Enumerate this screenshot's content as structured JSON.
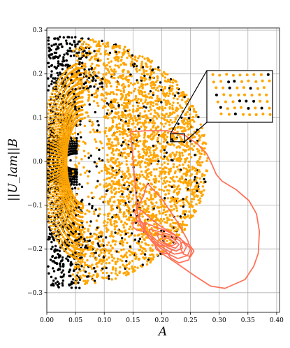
{
  "chart_data": {
    "type": "scatter",
    "xlabel": "A",
    "ylabel": "||U_lam||B",
    "xlim": [
      0.0,
      0.405
    ],
    "ylim": [
      -0.345,
      0.305
    ],
    "xticks": [
      "0.00",
      "0.05",
      "0.10",
      "0.15",
      "0.20",
      "0.25",
      "0.30",
      "0.35",
      "0.40"
    ],
    "yticks": [
      "0.3",
      "0.2",
      "0.1",
      "0.0",
      "−0.1",
      "−0.2",
      "−0.3"
    ],
    "grid": true,
    "colors": {
      "black_points": "#000000",
      "orange_points": "#ffa500",
      "contour": "#ff6f55"
    },
    "ellipse_boundary": {
      "center": [
        0.05,
        0.0
      ],
      "semi_x": 0.23,
      "semi_y": 0.282
    },
    "black_arcs": {
      "center": [
        0.052,
        0.0
      ],
      "radii": [
        0.016,
        0.021,
        0.026,
        0.031,
        0.036,
        0.041,
        0.046
      ],
      "aspect": 1.0
    },
    "orange_rings": {
      "center": [
        0.052,
        0.0
      ],
      "radii": [
        0.051,
        0.057,
        0.063,
        0.069,
        0.075,
        0.081,
        0.088,
        0.095,
        0.102,
        0.11,
        0.118,
        0.126,
        0.134
      ],
      "aspect": 1.0
    },
    "inset": {
      "zoom_region": {
        "x": [
          0.215,
          0.24
        ],
        "y": [
          0.045,
          0.063
        ]
      },
      "position": "upper-right"
    },
    "contours": [
      [
        [
          0.146,
          0.068
        ],
        [
          0.175,
          0.07
        ],
        [
          0.21,
          0.07
        ],
        [
          0.24,
          0.06
        ],
        [
          0.262,
          0.04
        ],
        [
          0.278,
          0.018
        ],
        [
          0.285,
          0.0
        ],
        [
          0.295,
          -0.03
        ],
        [
          0.305,
          -0.045
        ],
        [
          0.33,
          -0.065
        ],
        [
          0.352,
          -0.09
        ],
        [
          0.365,
          -0.12
        ],
        [
          0.37,
          -0.16
        ],
        [
          0.368,
          -0.21
        ],
        [
          0.36,
          -0.24
        ],
        [
          0.345,
          -0.27
        ],
        [
          0.31,
          -0.29
        ],
        [
          0.285,
          -0.285
        ],
        [
          0.258,
          -0.262
        ],
        [
          0.225,
          -0.232
        ],
        [
          0.2,
          -0.21
        ],
        [
          0.178,
          -0.175
        ],
        [
          0.165,
          -0.14
        ],
        [
          0.158,
          -0.12
        ]
      ],
      [
        [
          0.175,
          -0.05
        ],
        [
          0.2,
          -0.085
        ],
        [
          0.228,
          -0.14
        ],
        [
          0.245,
          -0.18
        ],
        [
          0.252,
          -0.205
        ],
        [
          0.247,
          -0.225
        ],
        [
          0.23,
          -0.232
        ],
        [
          0.215,
          -0.22
        ],
        [
          0.205,
          -0.2
        ],
        [
          0.19,
          -0.185
        ],
        [
          0.175,
          -0.165
        ],
        [
          0.158,
          -0.14
        ],
        [
          0.153,
          -0.115
        ],
        [
          0.16,
          -0.1
        ],
        [
          0.168,
          -0.08
        ]
      ],
      [
        [
          0.163,
          -0.11
        ],
        [
          0.18,
          -0.13
        ],
        [
          0.2,
          -0.15
        ],
        [
          0.22,
          -0.165
        ],
        [
          0.24,
          -0.185
        ],
        [
          0.25,
          -0.2
        ],
        [
          0.245,
          -0.215
        ],
        [
          0.228,
          -0.222
        ],
        [
          0.212,
          -0.212
        ],
        [
          0.195,
          -0.195
        ],
        [
          0.178,
          -0.175
        ],
        [
          0.165,
          -0.15
        ],
        [
          0.16,
          -0.13
        ]
      ],
      [
        [
          0.17,
          -0.14
        ],
        [
          0.19,
          -0.15
        ],
        [
          0.21,
          -0.16
        ],
        [
          0.232,
          -0.175
        ],
        [
          0.243,
          -0.195
        ],
        [
          0.238,
          -0.208
        ],
        [
          0.222,
          -0.212
        ],
        [
          0.205,
          -0.2
        ],
        [
          0.19,
          -0.185
        ],
        [
          0.175,
          -0.165
        ],
        [
          0.168,
          -0.15
        ]
      ],
      [
        [
          0.178,
          -0.155
        ],
        [
          0.195,
          -0.16
        ],
        [
          0.215,
          -0.168
        ],
        [
          0.232,
          -0.182
        ],
        [
          0.236,
          -0.198
        ],
        [
          0.225,
          -0.205
        ],
        [
          0.21,
          -0.197
        ],
        [
          0.195,
          -0.185
        ],
        [
          0.182,
          -0.17
        ]
      ],
      [
        [
          0.19,
          -0.165
        ],
        [
          0.205,
          -0.168
        ],
        [
          0.222,
          -0.178
        ],
        [
          0.23,
          -0.19
        ],
        [
          0.224,
          -0.198
        ],
        [
          0.21,
          -0.193
        ],
        [
          0.198,
          -0.183
        ]
      ],
      [
        [
          0.2,
          -0.172
        ],
        [
          0.215,
          -0.178
        ],
        [
          0.225,
          -0.188
        ],
        [
          0.218,
          -0.193
        ],
        [
          0.206,
          -0.187
        ]
      ],
      [
        [
          0.188,
          -0.19
        ],
        [
          0.205,
          -0.193
        ],
        [
          0.218,
          -0.203
        ],
        [
          0.212,
          -0.212
        ],
        [
          0.198,
          -0.208
        ],
        [
          0.19,
          -0.2
        ]
      ],
      [
        [
          0.235,
          -0.185
        ],
        [
          0.248,
          -0.19
        ],
        [
          0.256,
          -0.205
        ],
        [
          0.25,
          -0.218
        ],
        [
          0.238,
          -0.212
        ],
        [
          0.232,
          -0.198
        ]
      ],
      [
        [
          0.15,
          -0.14
        ],
        [
          0.162,
          -0.135
        ],
        [
          0.172,
          -0.145
        ],
        [
          0.17,
          -0.16
        ],
        [
          0.158,
          -0.158
        ],
        [
          0.15,
          -0.15
        ]
      ]
    ]
  }
}
